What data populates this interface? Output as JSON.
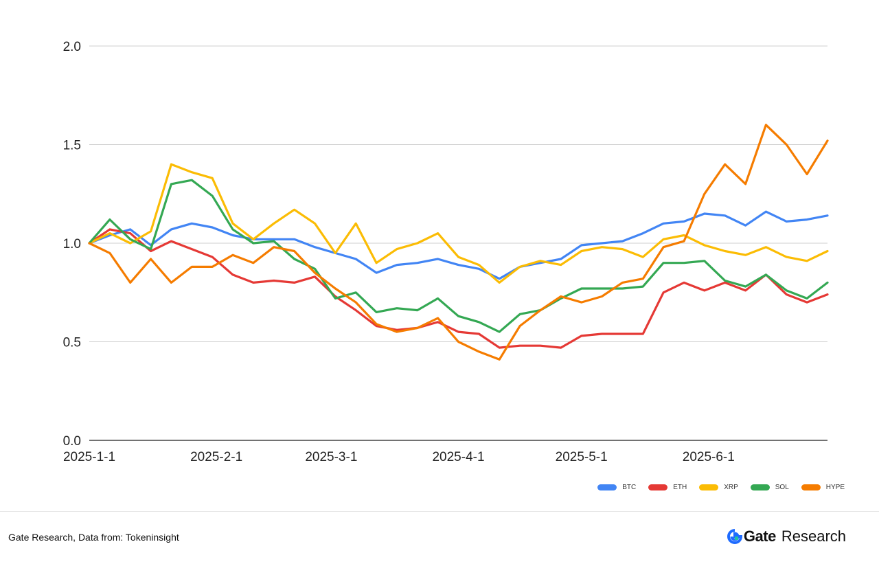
{
  "chart_data": {
    "type": "line",
    "title": "",
    "xlabel": "",
    "ylabel": "",
    "ylim": [
      0,
      2
    ],
    "y_ticks": [
      "0.0",
      "0.5",
      "1.0",
      "1.5",
      "2.0"
    ],
    "x_tick_labels": [
      "2025-1-1",
      "2025-2-1",
      "2025-3-1",
      "2025-4-1",
      "2025-5-1",
      "2025-6-1"
    ],
    "x_tick_dates": [
      "2025-01-01",
      "2025-02-01",
      "2025-03-01",
      "2025-04-01",
      "2025-05-01",
      "2025-06-01"
    ],
    "x_range": [
      "2025-01-01",
      "2025-06-30"
    ],
    "grid": "horizontal",
    "legend_position": "bottom-right",
    "x": [
      "2025-01-01",
      "2025-01-06",
      "2025-01-11",
      "2025-01-16",
      "2025-01-21",
      "2025-01-26",
      "2025-01-31",
      "2025-02-05",
      "2025-02-10",
      "2025-02-15",
      "2025-02-20",
      "2025-02-25",
      "2025-03-02",
      "2025-03-07",
      "2025-03-12",
      "2025-03-17",
      "2025-03-22",
      "2025-03-27",
      "2025-04-01",
      "2025-04-06",
      "2025-04-11",
      "2025-04-16",
      "2025-04-21",
      "2025-04-26",
      "2025-05-01",
      "2025-05-06",
      "2025-05-11",
      "2025-05-16",
      "2025-05-21",
      "2025-05-26",
      "2025-05-31",
      "2025-06-05",
      "2025-06-10",
      "2025-06-15",
      "2025-06-20",
      "2025-06-25",
      "2025-06-30"
    ],
    "series": [
      {
        "name": "BTC",
        "color": "#4285F4",
        "values": [
          1.0,
          1.04,
          1.07,
          0.99,
          1.07,
          1.1,
          1.08,
          1.04,
          1.02,
          1.02,
          1.02,
          0.98,
          0.95,
          0.92,
          0.85,
          0.89,
          0.9,
          0.92,
          0.89,
          0.87,
          0.82,
          0.88,
          0.9,
          0.92,
          0.99,
          1.0,
          1.01,
          1.05,
          1.1,
          1.11,
          1.15,
          1.14,
          1.09,
          1.16,
          1.11,
          1.12,
          1.14
        ]
      },
      {
        "name": "ETH",
        "color": "#E53935",
        "values": [
          1.0,
          1.07,
          1.05,
          0.96,
          1.01,
          0.97,
          0.93,
          0.84,
          0.8,
          0.81,
          0.8,
          0.83,
          0.73,
          0.66,
          0.58,
          0.56,
          0.57,
          0.6,
          0.55,
          0.54,
          0.47,
          0.48,
          0.48,
          0.47,
          0.53,
          0.54,
          0.54,
          0.54,
          0.75,
          0.8,
          0.76,
          0.8,
          0.76,
          0.84,
          0.74,
          0.7,
          0.74
        ]
      },
      {
        "name": "XRP",
        "color": "#FBBC04",
        "values": [
          1.0,
          1.05,
          1.0,
          1.06,
          1.4,
          1.36,
          1.33,
          1.1,
          1.02,
          1.1,
          1.17,
          1.1,
          0.95,
          1.1,
          0.9,
          0.97,
          1.0,
          1.05,
          0.93,
          0.89,
          0.8,
          0.88,
          0.91,
          0.89,
          0.96,
          0.98,
          0.97,
          0.93,
          1.02,
          1.04,
          0.99,
          0.96,
          0.94,
          0.98,
          0.93,
          0.91,
          0.96
        ]
      },
      {
        "name": "SOL",
        "color": "#34A853",
        "values": [
          1.0,
          1.12,
          1.02,
          0.97,
          1.3,
          1.32,
          1.24,
          1.07,
          1.0,
          1.01,
          0.92,
          0.87,
          0.72,
          0.75,
          0.65,
          0.67,
          0.66,
          0.72,
          0.63,
          0.6,
          0.55,
          0.64,
          0.66,
          0.72,
          0.77,
          0.77,
          0.77,
          0.78,
          0.9,
          0.9,
          0.91,
          0.81,
          0.78,
          0.84,
          0.76,
          0.72,
          0.8
        ]
      },
      {
        "name": "HYPE",
        "color": "#F57C00",
        "values": [
          1.0,
          0.95,
          0.8,
          0.92,
          0.8,
          0.88,
          0.88,
          0.94,
          0.9,
          0.98,
          0.96,
          0.85,
          0.77,
          0.7,
          0.59,
          0.55,
          0.57,
          0.62,
          0.5,
          0.45,
          0.41,
          0.58,
          0.66,
          0.73,
          0.7,
          0.73,
          0.8,
          0.82,
          0.98,
          1.01,
          1.25,
          1.4,
          1.3,
          1.6,
          1.5,
          1.35,
          1.52
        ]
      }
    ]
  },
  "footer": {
    "source": "Gate Research, Data from: Tokeninsight",
    "brand_gate": "Gate",
    "brand_research": "Research"
  }
}
